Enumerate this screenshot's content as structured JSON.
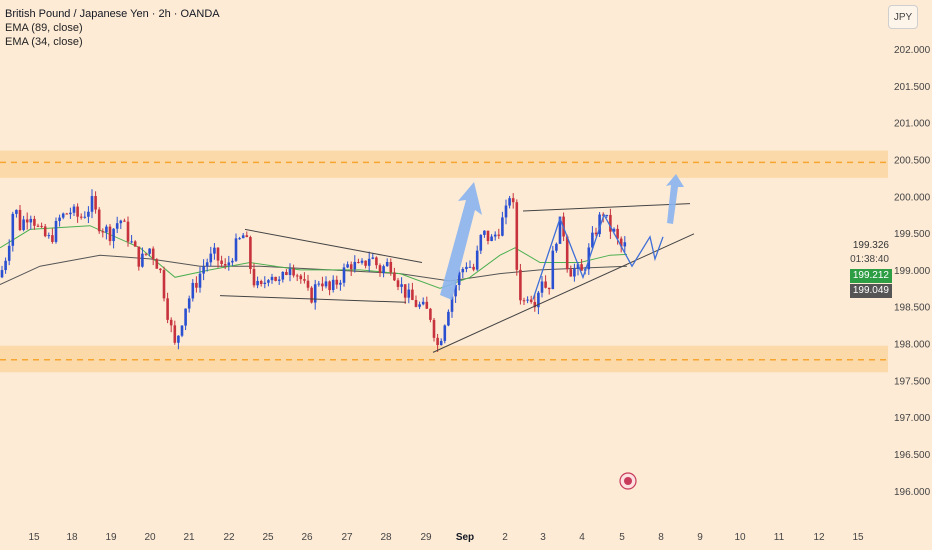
{
  "legend": {
    "title": "British Pound / Japanese Yen · 2h · OANDA",
    "ema1": "EMA (89, close)",
    "ema2": "EMA (34, close)"
  },
  "currency": "JPY",
  "price_tags": {
    "last": "199.326",
    "countdown": "01:38:40",
    "ema_fast": "199.212",
    "ema_slow": "199.049"
  },
  "colors": {
    "background": "#fdebd6",
    "zone": "#fbd9a9",
    "zone_line": "#f7a531",
    "bull": "#2a50d1",
    "bear": "#c7323d",
    "ema_fast": "#4caf50",
    "ema_slow": "#555555",
    "arrow": "#8ab4ee"
  },
  "chart_data": {
    "type": "candlestick",
    "title": "British Pound / Japanese Yen · 2h · OANDA",
    "indicators": [
      "EMA (89, close)",
      "EMA (34, close)"
    ],
    "y_ticks": [
      "202.000",
      "201.500",
      "201.000",
      "200.500",
      "200.000",
      "199.500",
      "199.000",
      "198.500",
      "198.000",
      "197.500",
      "197.000",
      "196.500",
      "196.000"
    ],
    "y_tick_values": [
      202.0,
      201.5,
      201.0,
      200.5,
      200.0,
      199.5,
      199.0,
      198.5,
      198.0,
      197.5,
      197.0,
      196.5,
      196.0
    ],
    "x_ticks": [
      "15",
      "18",
      "19",
      "20",
      "21",
      "22",
      "25",
      "26",
      "27",
      "28",
      "29",
      "Sep",
      "2",
      "3",
      "4",
      "5",
      "8",
      "9",
      "10",
      "11",
      "12",
      "15"
    ],
    "ylim": [
      195.5,
      202.7
    ],
    "resistance_zone": [
      200.25,
      200.62
    ],
    "resistance_mid": 200.46,
    "support_zone": [
      197.61,
      197.97
    ],
    "support_mid": 197.78,
    "ohlc_anchors": [
      {
        "x": 0,
        "y": 198.9
      },
      {
        "x": 8,
        "y": 199.3
      },
      {
        "x": 14,
        "y": 199.9
      },
      {
        "x": 20,
        "y": 199.6
      },
      {
        "x": 30,
        "y": 199.8
      },
      {
        "x": 40,
        "y": 199.5
      },
      {
        "x": 50,
        "y": 199.4
      },
      {
        "x": 60,
        "y": 199.7
      },
      {
        "x": 70,
        "y": 199.8
      },
      {
        "x": 80,
        "y": 199.7
      },
      {
        "x": 92,
        "y": 199.9
      },
      {
        "x": 100,
        "y": 199.6
      },
      {
        "x": 110,
        "y": 199.5
      },
      {
        "x": 120,
        "y": 199.7
      },
      {
        "x": 130,
        "y": 199.4
      },
      {
        "x": 140,
        "y": 199.1
      },
      {
        "x": 150,
        "y": 199.3
      },
      {
        "x": 160,
        "y": 199.0
      },
      {
        "x": 168,
        "y": 198.4
      },
      {
        "x": 175,
        "y": 197.95
      },
      {
        "x": 185,
        "y": 198.5
      },
      {
        "x": 195,
        "y": 198.8
      },
      {
        "x": 205,
        "y": 199.1
      },
      {
        "x": 215,
        "y": 199.2
      },
      {
        "x": 225,
        "y": 199.0
      },
      {
        "x": 235,
        "y": 199.3
      },
      {
        "x": 245,
        "y": 199.5
      },
      {
        "x": 252,
        "y": 198.9
      },
      {
        "x": 260,
        "y": 198.7
      },
      {
        "x": 270,
        "y": 199.0
      },
      {
        "x": 280,
        "y": 198.8
      },
      {
        "x": 290,
        "y": 199.1
      },
      {
        "x": 300,
        "y": 198.9
      },
      {
        "x": 310,
        "y": 198.6
      },
      {
        "x": 320,
        "y": 198.9
      },
      {
        "x": 330,
        "y": 198.7
      },
      {
        "x": 340,
        "y": 198.9
      },
      {
        "x": 350,
        "y": 199.1
      },
      {
        "x": 360,
        "y": 199.0
      },
      {
        "x": 370,
        "y": 199.2
      },
      {
        "x": 380,
        "y": 199.0
      },
      {
        "x": 390,
        "y": 199.1
      },
      {
        "x": 400,
        "y": 198.8
      },
      {
        "x": 410,
        "y": 198.6
      },
      {
        "x": 420,
        "y": 198.5
      },
      {
        "x": 430,
        "y": 198.4
      },
      {
        "x": 438,
        "y": 197.95
      },
      {
        "x": 448,
        "y": 198.5
      },
      {
        "x": 458,
        "y": 198.9
      },
      {
        "x": 466,
        "y": 199.1
      },
      {
        "x": 474,
        "y": 199.0
      },
      {
        "x": 482,
        "y": 199.5
      },
      {
        "x": 492,
        "y": 199.4
      },
      {
        "x": 500,
        "y": 199.6
      },
      {
        "x": 507,
        "y": 199.8
      },
      {
        "x": 512,
        "y": 200.25
      },
      {
        "x": 515,
        "y": 199.2
      },
      {
        "x": 522,
        "y": 198.5
      },
      {
        "x": 528,
        "y": 198.7
      },
      {
        "x": 535,
        "y": 198.6
      },
      {
        "x": 542,
        "y": 198.9
      },
      {
        "x": 548,
        "y": 198.7
      },
      {
        "x": 555,
        "y": 199.4
      },
      {
        "x": 562,
        "y": 199.7
      },
      {
        "x": 568,
        "y": 199.0
      },
      {
        "x": 575,
        "y": 199.0
      },
      {
        "x": 582,
        "y": 198.95
      },
      {
        "x": 590,
        "y": 199.3
      },
      {
        "x": 597,
        "y": 199.6
      },
      {
        "x": 603,
        "y": 199.8
      },
      {
        "x": 608,
        "y": 199.6
      },
      {
        "x": 614,
        "y": 199.5
      },
      {
        "x": 620,
        "y": 199.3
      },
      {
        "x": 627,
        "y": 199.33
      }
    ],
    "ema_fast_anchors": [
      {
        "x": 0,
        "y": 199.3
      },
      {
        "x": 30,
        "y": 199.55
      },
      {
        "x": 90,
        "y": 199.6
      },
      {
        "x": 140,
        "y": 199.3
      },
      {
        "x": 175,
        "y": 198.9
      },
      {
        "x": 210,
        "y": 199.0
      },
      {
        "x": 250,
        "y": 199.1
      },
      {
        "x": 300,
        "y": 199.0
      },
      {
        "x": 360,
        "y": 199.0
      },
      {
        "x": 400,
        "y": 198.95
      },
      {
        "x": 440,
        "y": 198.75
      },
      {
        "x": 470,
        "y": 198.9
      },
      {
        "x": 500,
        "y": 199.2
      },
      {
        "x": 515,
        "y": 199.3
      },
      {
        "x": 540,
        "y": 199.1
      },
      {
        "x": 580,
        "y": 199.1
      },
      {
        "x": 610,
        "y": 199.2
      },
      {
        "x": 627,
        "y": 199.21
      }
    ],
    "ema_slow_anchors": [
      {
        "x": 0,
        "y": 198.8
      },
      {
        "x": 40,
        "y": 199.05
      },
      {
        "x": 100,
        "y": 199.2
      },
      {
        "x": 150,
        "y": 199.15
      },
      {
        "x": 200,
        "y": 199.05
      },
      {
        "x": 260,
        "y": 199.05
      },
      {
        "x": 330,
        "y": 199.0
      },
      {
        "x": 400,
        "y": 198.95
      },
      {
        "x": 450,
        "y": 198.85
      },
      {
        "x": 500,
        "y": 198.95
      },
      {
        "x": 540,
        "y": 199.0
      },
      {
        "x": 590,
        "y": 199.03
      },
      {
        "x": 627,
        "y": 199.05
      }
    ],
    "trendlines": [
      {
        "name": "upper-wedge-line",
        "x1": 245,
        "y1": 199.55,
        "x2": 422,
        "y2": 199.1
      },
      {
        "name": "lower-wedge-line",
        "x1": 220,
        "y1": 198.65,
        "x2": 406,
        "y2": 198.56
      },
      {
        "name": "triangle-top-line",
        "x1": 523,
        "y1": 199.8,
        "x2": 690,
        "y2": 199.9
      },
      {
        "name": "ascending-support-line",
        "x1": 433,
        "y1": 197.88,
        "x2": 694,
        "y2": 199.49
      }
    ],
    "projection_path": [
      {
        "x": 533,
        "y": 198.6
      },
      {
        "x": 560,
        "y": 199.7
      },
      {
        "x": 583,
        "y": 198.9
      },
      {
        "x": 604,
        "y": 199.75
      },
      {
        "x": 632,
        "y": 199.05
      },
      {
        "x": 650,
        "y": 199.45
      },
      {
        "x": 655,
        "y": 199.15
      },
      {
        "x": 663,
        "y": 199.45
      }
    ]
  }
}
